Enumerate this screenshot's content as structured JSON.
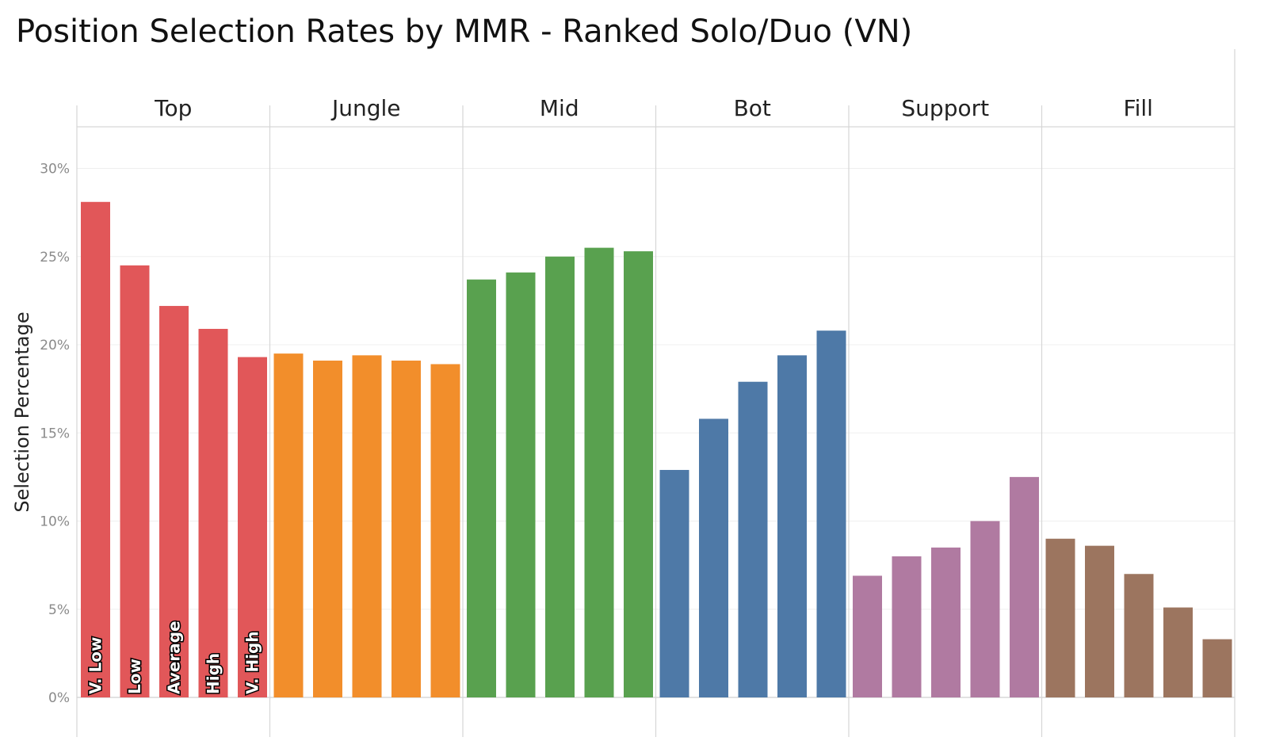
{
  "chart_data": {
    "type": "bar",
    "title": "Position Selection Rates by MMR - Ranked Solo/Duo (VN)",
    "ylabel": "Selection Percentage",
    "xlabel": "",
    "ylim": [
      0,
      32.5
    ],
    "yticks": [
      0,
      5,
      10,
      15,
      20,
      25,
      30
    ],
    "ytick_labels": [
      "0%",
      "5%",
      "10%",
      "15%",
      "20%",
      "25%",
      "30%"
    ],
    "grid": true,
    "mmr_labels": [
      "V. Low",
      "Low",
      "Average",
      "High",
      "V. High"
    ],
    "series": [
      {
        "name": "Top",
        "color": "#E15759",
        "values": [
          28.1,
          24.5,
          22.2,
          20.9,
          19.3
        ]
      },
      {
        "name": "Jungle",
        "color": "#F28E2B",
        "values": [
          19.5,
          19.1,
          19.4,
          19.1,
          18.9
        ]
      },
      {
        "name": "Mid",
        "color": "#59A14F",
        "values": [
          23.7,
          24.1,
          25.0,
          25.5,
          25.3
        ]
      },
      {
        "name": "Bot",
        "color": "#4E79A7",
        "values": [
          12.9,
          15.8,
          17.9,
          19.4,
          20.8
        ]
      },
      {
        "name": "Support",
        "color": "#B07AA1",
        "values": [
          6.9,
          8.0,
          8.5,
          10.0,
          12.5
        ]
      },
      {
        "name": "Fill",
        "color": "#9C755F",
        "values": [
          9.0,
          8.6,
          7.0,
          5.1,
          3.3
        ]
      }
    ]
  }
}
